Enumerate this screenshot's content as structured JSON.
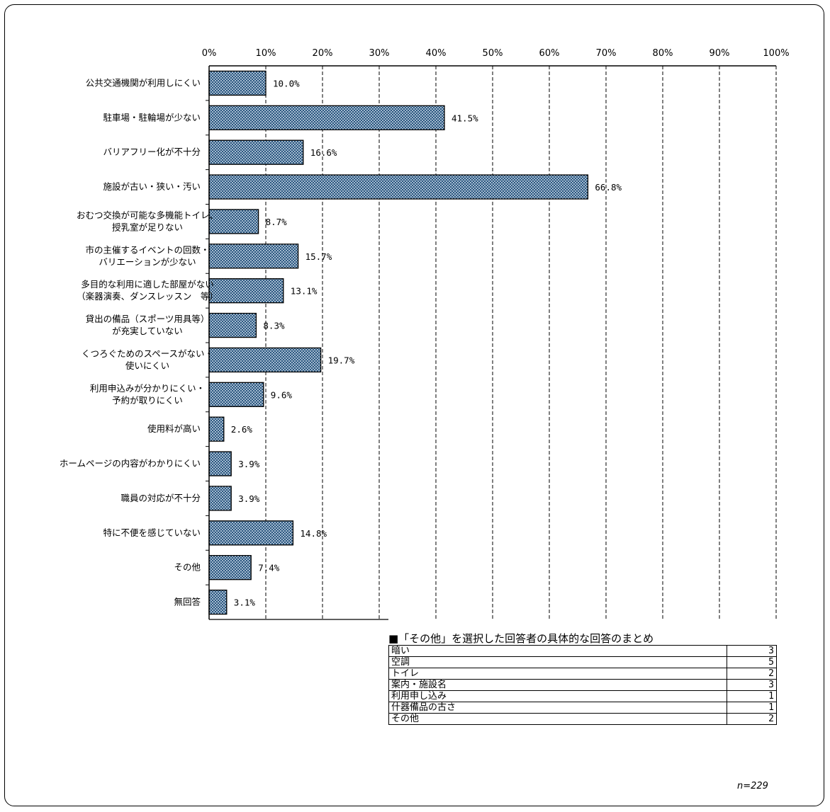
{
  "chart_data": {
    "type": "bar",
    "orientation": "horizontal",
    "categories": [
      [
        "公共交通機関が利用しにくい"
      ],
      [
        "駐車場・駐輪場が少ない"
      ],
      [
        "バリアフリー化が不十分"
      ],
      [
        "施設が古い・狭い・汚い"
      ],
      [
        "おむつ交換が可能な多機能トイレ、",
        "授乳室が足りない"
      ],
      [
        "市の主催するイベントの回数・",
        "バリエーションが少ない"
      ],
      [
        "多目的な利用に適した部屋がない",
        "（楽器演奏、ダンスレッスン　等）"
      ],
      [
        "貸出の備品（スポーツ用具等）",
        "が充実していない"
      ],
      [
        "くつろぐためのスペースがない・",
        "使いにくい"
      ],
      [
        "利用申込みが分かりにくい・",
        "予約が取りにくい"
      ],
      [
        "使用料が高い"
      ],
      [
        "ホームページの内容がわかりにくい"
      ],
      [
        "職員の対応が不十分"
      ],
      [
        "特に不便を感じていない"
      ],
      [
        "その他"
      ],
      [
        "無回答"
      ]
    ],
    "values": [
      10.0,
      41.5,
      16.6,
      66.8,
      8.7,
      15.7,
      13.1,
      8.3,
      19.7,
      9.6,
      2.6,
      3.9,
      3.9,
      14.8,
      7.4,
      3.1
    ],
    "value_labels": [
      "10.0%",
      "41.5%",
      "16.6%",
      "66.8%",
      "8.7%",
      "15.7%",
      "13.1%",
      "8.3%",
      "19.7%",
      "9.6%",
      "2.6%",
      "3.9%",
      "3.9%",
      "14.8%",
      "7.4%",
      "3.1%"
    ],
    "xlim": [
      0,
      100
    ],
    "x_ticks": [
      "0%",
      "10%",
      "20%",
      "30%",
      "40%",
      "50%",
      "60%",
      "70%",
      "80%",
      "90%",
      "100%"
    ],
    "grid": "vertical dashed",
    "bar_color": "#1f4e79",
    "bar_fill": "crosshatch pattern"
  },
  "other_summary": {
    "title": "■「その他」を選択した回答者の具体的な回答のまとめ",
    "rows": [
      {
        "label": "暗い",
        "count": "3"
      },
      {
        "label": "空調",
        "count": "5"
      },
      {
        "label": "トイレ",
        "count": "2"
      },
      {
        "label": "案内・施設名",
        "count": "3"
      },
      {
        "label": "利用申し込み",
        "count": "1"
      },
      {
        "label": "什器備品の古さ",
        "count": "1"
      },
      {
        "label": "その他",
        "count": "2"
      }
    ]
  },
  "n_label": "n=229"
}
